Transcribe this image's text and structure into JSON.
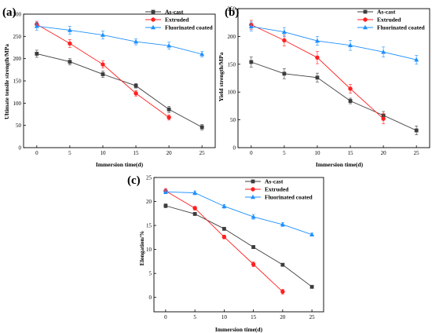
{
  "figure": {
    "panel_labels": [
      "(a)",
      "(b)",
      "(c)"
    ]
  },
  "chart_data": [
    {
      "type": "line",
      "panel": "(a)",
      "xlabel": "Immersion time(d)",
      "ylabel": "Ultimate tensile strength/MPa",
      "xlim": [
        -2,
        27
      ],
      "ylim": [
        0,
        300
      ],
      "xticks": [
        0,
        5,
        10,
        15,
        20,
        25
      ],
      "yticks": [
        0,
        50,
        100,
        150,
        200,
        250,
        300
      ],
      "legend": "top-center",
      "series": [
        {
          "name": "As-cast",
          "color": "#3c3c3c",
          "marker": "square",
          "x": [
            0,
            5,
            10,
            15,
            20,
            25
          ],
          "values": [
            211,
            193,
            165,
            139,
            86,
            46
          ],
          "err": [
            8,
            7,
            7,
            5,
            7,
            6
          ]
        },
        {
          "name": "Extruded",
          "color": "#ff2020",
          "marker": "circle",
          "x": [
            0,
            5,
            10,
            15,
            20
          ],
          "values": [
            277,
            234,
            187,
            122,
            68
          ],
          "err": [
            7,
            9,
            8,
            6,
            6
          ]
        },
        {
          "name": "Fluorinated coated",
          "color": "#1e90ff",
          "marker": "triangle",
          "x": [
            0,
            5,
            10,
            15,
            20,
            25
          ],
          "values": [
            273,
            264,
            253,
            238,
            229,
            210
          ],
          "err": [
            9,
            9,
            9,
            7,
            8,
            6
          ]
        }
      ]
    },
    {
      "type": "line",
      "panel": "(b)",
      "xlabel": "Immersion time(d)",
      "ylabel": "Yield strength/MPa",
      "xlim": [
        -2,
        27
      ],
      "ylim": [
        0,
        250
      ],
      "xticks": [
        0,
        5,
        10,
        15,
        20,
        25
      ],
      "yticks": [
        0,
        50,
        100,
        150,
        200,
        250
      ],
      "legend": "top-center",
      "series": [
        {
          "name": "As-cast",
          "color": "#3c3c3c",
          "marker": "square",
          "x": [
            0,
            5,
            10,
            15,
            20,
            25
          ],
          "values": [
            154,
            133,
            126,
            84,
            58,
            31
          ],
          "err": [
            9,
            9,
            8,
            5,
            7,
            8
          ]
        },
        {
          "name": "Extruded",
          "color": "#ff2020",
          "marker": "circle",
          "x": [
            0,
            5,
            10,
            15,
            20
          ],
          "values": [
            221,
            193,
            162,
            106,
            52
          ],
          "err": [
            8,
            10,
            11,
            8,
            9
          ]
        },
        {
          "name": "Fluorinated coated",
          "color": "#1e90ff",
          "marker": "triangle",
          "x": [
            0,
            5,
            10,
            15,
            20,
            25
          ],
          "values": [
            218,
            208,
            192,
            184,
            172,
            158
          ],
          "err": [
            8,
            8,
            8,
            9,
            9,
            8
          ]
        }
      ]
    },
    {
      "type": "line",
      "panel": "(c)",
      "xlabel": "Immersion time(d)",
      "ylabel": "Elongation/%",
      "xlim": [
        -2,
        27
      ],
      "ylim": [
        -3,
        25
      ],
      "xticks": [
        0,
        5,
        10,
        15,
        20,
        25
      ],
      "yticks": [
        0,
        5,
        10,
        15,
        20,
        25
      ],
      "legend": "top-right",
      "series": [
        {
          "name": "As-cast",
          "color": "#3c3c3c",
          "marker": "square",
          "x": [
            0,
            5,
            10,
            15,
            20,
            25
          ],
          "values": [
            19.1,
            17.4,
            14.3,
            10.5,
            6.8,
            2.2
          ],
          "err": [
            0.4,
            0.3,
            0.3,
            0.3,
            0.3,
            0.3
          ]
        },
        {
          "name": "Extruded",
          "color": "#ff2020",
          "marker": "circle",
          "x": [
            0,
            5,
            10,
            15,
            20
          ],
          "values": [
            22.2,
            18.6,
            12.6,
            6.9,
            1.2
          ],
          "err": [
            0.5,
            0.4,
            0.4,
            0.5,
            0.5
          ]
        },
        {
          "name": "Fluorinated coated",
          "color": "#1e90ff",
          "marker": "triangle",
          "x": [
            0,
            5,
            10,
            15,
            20,
            25
          ],
          "values": [
            22.0,
            21.8,
            19.0,
            16.8,
            15.2,
            13.1
          ],
          "err": [
            0.4,
            0.4,
            0.4,
            0.5,
            0.4,
            0.3
          ]
        }
      ]
    }
  ]
}
